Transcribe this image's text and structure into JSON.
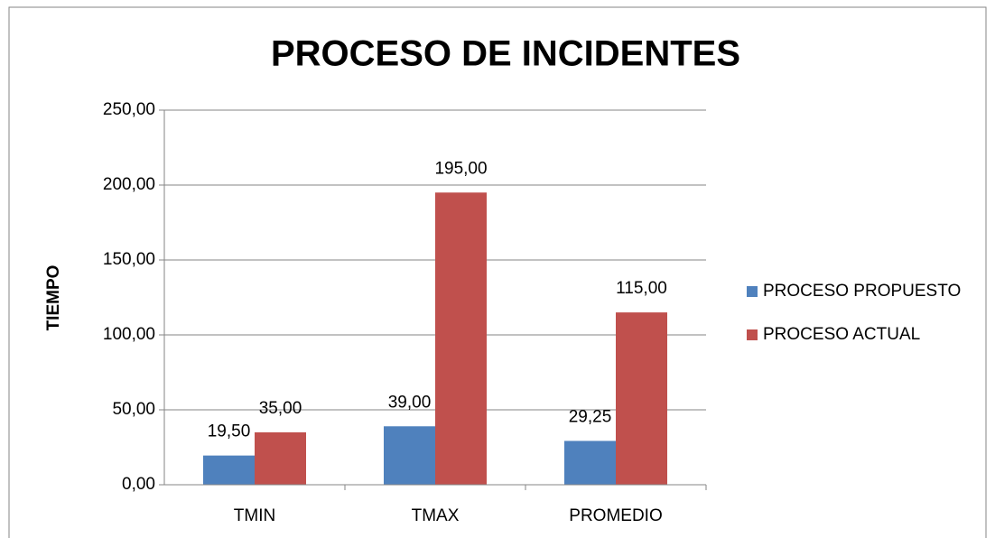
{
  "chart_data": {
    "type": "bar",
    "title": "PROCESO DE INCIDENTES",
    "y_label": "TIEMPO",
    "categories": [
      "TMIN",
      "TMAX",
      "PROMEDIO"
    ],
    "series": [
      {
        "name": "PROCESO PROPUESTO",
        "color": "#4f81bd",
        "values": [
          19.5,
          39,
          29.25
        ],
        "value_labels": [
          "19,50",
          "39,00",
          "29,25"
        ]
      },
      {
        "name": "PROCESO ACTUAL",
        "color": "#c0504d",
        "values": [
          35,
          195,
          115
        ],
        "value_labels": [
          "35,00",
          "195,00",
          "115,00"
        ]
      }
    ],
    "ylim": [
      0,
      250
    ],
    "yticks": [
      {
        "value": 0,
        "label": "0,00"
      },
      {
        "value": 50,
        "label": "50,00"
      },
      {
        "value": 100,
        "label": "100,00"
      },
      {
        "value": 150,
        "label": "150,00"
      },
      {
        "value": 200,
        "label": "200,00"
      },
      {
        "value": 250,
        "label": "250,00"
      }
    ],
    "grid": true,
    "legend": "right"
  }
}
